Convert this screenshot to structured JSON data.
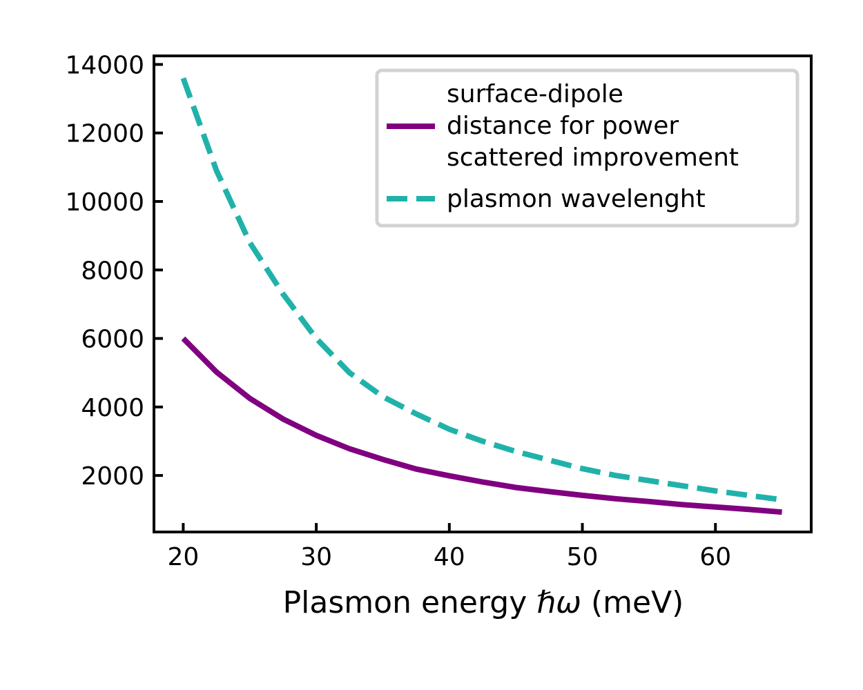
{
  "chart_data": {
    "type": "line",
    "title": "",
    "xlabel": "Plasmon energy ℏω (meV)",
    "xlabel_parts": {
      "prefix": "Plasmon energy ",
      "symbol": "ℏω",
      "suffix": " (meV)"
    },
    "ylabel": "",
    "xlim": [
      17.8,
      67.2
    ],
    "ylim": [
      350,
      14250
    ],
    "xticks": [
      20,
      30,
      40,
      50,
      60
    ],
    "yticks": [
      2000,
      4000,
      6000,
      8000,
      10000,
      12000,
      14000
    ],
    "grid": false,
    "legend": "top-right",
    "colors": {
      "distance": "#800080",
      "wavelength": "#20b2aa"
    },
    "series": [
      {
        "name": "surface-dipole distance for power scattered improvement",
        "name_lines": [
          "surface-dipole",
          "distance for power",
          "scattered improvement"
        ],
        "style": "solid",
        "x": [
          20,
          22.5,
          25,
          27.5,
          30,
          32.5,
          35,
          37.5,
          40,
          42.5,
          45,
          47.5,
          50,
          52.5,
          55,
          57.5,
          60,
          62.5,
          65
        ],
        "values": [
          6000,
          5020,
          4250,
          3650,
          3170,
          2780,
          2470,
          2190,
          1990,
          1810,
          1650,
          1530,
          1420,
          1320,
          1240,
          1150,
          1080,
          1010,
          930
        ]
      },
      {
        "name": "plasmon wavelenght",
        "style": "dashed",
        "x": [
          20,
          22.5,
          25,
          27.5,
          30,
          32.5,
          35,
          37.5,
          40,
          42.5,
          45,
          47.5,
          50,
          52.5,
          55,
          57.5,
          60,
          62.5,
          65
        ],
        "values": [
          13600,
          10900,
          8800,
          7300,
          6000,
          5000,
          4300,
          3800,
          3350,
          3000,
          2700,
          2450,
          2200,
          2000,
          1850,
          1700,
          1550,
          1420,
          1290
        ]
      }
    ]
  }
}
